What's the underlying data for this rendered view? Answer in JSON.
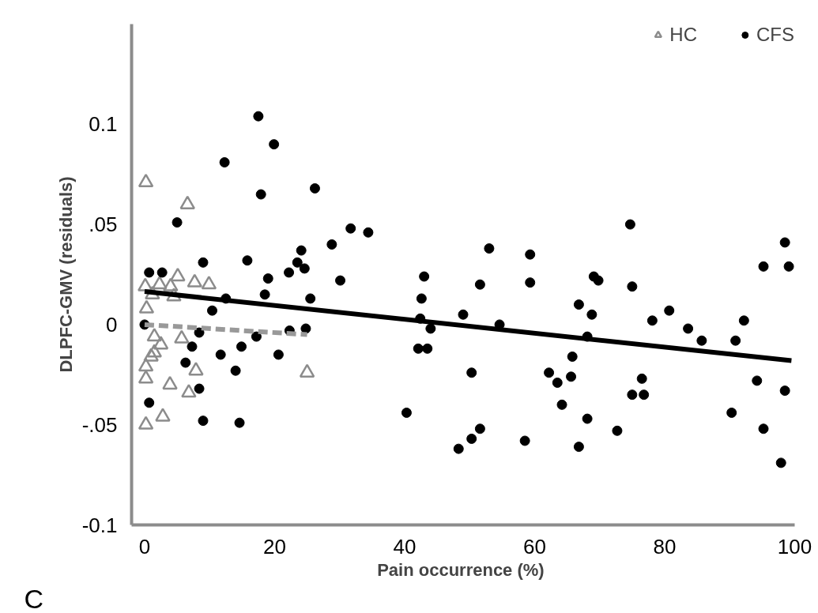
{
  "chart_data": {
    "type": "scatter",
    "xlabel": "Pain occurrence  (%)",
    "ylabel": "DLPFC-GMV (residuals)",
    "xlim": [
      -2,
      100
    ],
    "ylim": [
      -0.1,
      0.15
    ],
    "xticks": [
      0,
      20,
      40,
      60,
      80,
      100
    ],
    "yticks": [
      {
        "value": -0.1,
        "label": "-0.1"
      },
      {
        "value": -0.05,
        "label": "-.05"
      },
      0,
      {
        "value": 0.05,
        "label": ".05"
      },
      {
        "value": 0.1,
        "label": "0.1"
      }
    ],
    "grid": false,
    "legend": "top right",
    "annotations": [
      "C"
    ],
    "series": [
      {
        "name": "HC",
        "marker": "triangle",
        "color": "#8c8c8c",
        "x": [
          0.2,
          6.6,
          5.1,
          7.7,
          9.9,
          0.1,
          2.3,
          4.0,
          1.2,
          4.5,
          0.3,
          1.5,
          2.5,
          5.7,
          1.5,
          1.0,
          0.2,
          0.2,
          7.9,
          3.9,
          6.8,
          25.0,
          2.8,
          0.2
        ],
        "values": [
          0.071,
          0.06,
          0.024,
          0.021,
          0.02,
          0.019,
          0.02,
          0.019,
          0.015,
          0.014,
          0.008,
          -0.006,
          -0.01,
          -0.007,
          -0.014,
          -0.016,
          -0.021,
          -0.027,
          -0.023,
          -0.03,
          -0.034,
          -0.024,
          -0.046,
          -0.05
        ]
      },
      {
        "name": "CFS",
        "marker": "circle",
        "color": "#000000",
        "x": [
          17.5,
          19.9,
          12.3,
          17.9,
          26.2,
          5.0,
          9.0,
          15.8,
          0.7,
          2.7,
          19.0,
          22.2,
          23.5,
          24.6,
          24.1,
          18.5,
          12.5,
          25.5,
          10.4,
          0.0,
          8.4,
          17.2,
          22.3,
          24.8,
          7.3,
          14.9,
          11.7,
          20.6,
          6.3,
          14.0,
          8.4,
          0.7,
          9.0,
          14.6,
          28.8,
          31.7,
          34.4,
          30.1,
          43.0,
          42.6,
          42.4,
          44.0,
          42.1,
          43.5,
          40.3,
          49.0,
          50.3,
          51.6,
          50.3,
          48.3,
          53.0,
          51.6,
          54.6,
          59.3,
          59.3,
          58.5,
          62.2,
          63.5,
          64.2,
          65.8,
          65.6,
          68.1,
          66.8,
          66.8,
          68.1,
          68.8,
          69.1,
          69.8,
          72.7,
          74.7,
          75.0,
          76.5,
          75.0,
          76.8,
          78.1,
          80.7,
          83.6,
          85.7,
          90.3,
          90.9,
          92.2,
          94.2,
          95.2,
          95.2,
          98.5,
          99.1,
          98.5,
          97.9
        ],
        "values": [
          0.104,
          0.09,
          0.081,
          0.065,
          0.068,
          0.051,
          0.031,
          0.032,
          0.026,
          0.026,
          0.023,
          0.026,
          0.031,
          0.028,
          0.037,
          0.015,
          0.013,
          0.013,
          0.007,
          0.0,
          -0.004,
          -0.006,
          -0.003,
          -0.002,
          -0.011,
          -0.011,
          -0.015,
          -0.015,
          -0.019,
          -0.023,
          -0.032,
          -0.039,
          -0.048,
          -0.049,
          0.04,
          0.048,
          0.046,
          0.022,
          0.024,
          0.013,
          0.003,
          -0.002,
          -0.012,
          -0.012,
          -0.044,
          0.005,
          -0.024,
          -0.052,
          -0.057,
          -0.062,
          0.038,
          0.02,
          0.0,
          0.035,
          0.021,
          -0.058,
          -0.024,
          -0.029,
          -0.04,
          -0.016,
          -0.026,
          -0.047,
          -0.061,
          0.01,
          -0.006,
          0.005,
          0.024,
          0.022,
          -0.053,
          0.05,
          0.019,
          -0.027,
          -0.035,
          -0.035,
          0.002,
          0.007,
          -0.002,
          -0.008,
          -0.044,
          -0.008,
          0.002,
          -0.028,
          0.029,
          -0.052,
          0.041,
          0.029,
          -0.033,
          -0.069
        ]
      },
      {
        "type": "line",
        "line_style": "dashed",
        "color": "#999999",
        "x": [
          0,
          25
        ],
        "values": [
          0.0,
          -0.005
        ]
      },
      {
        "type": "line",
        "line_style": "solid",
        "color": "#000000",
        "x": [
          0,
          99.5
        ],
        "values": [
          0.0165,
          -0.018
        ]
      }
    ]
  }
}
